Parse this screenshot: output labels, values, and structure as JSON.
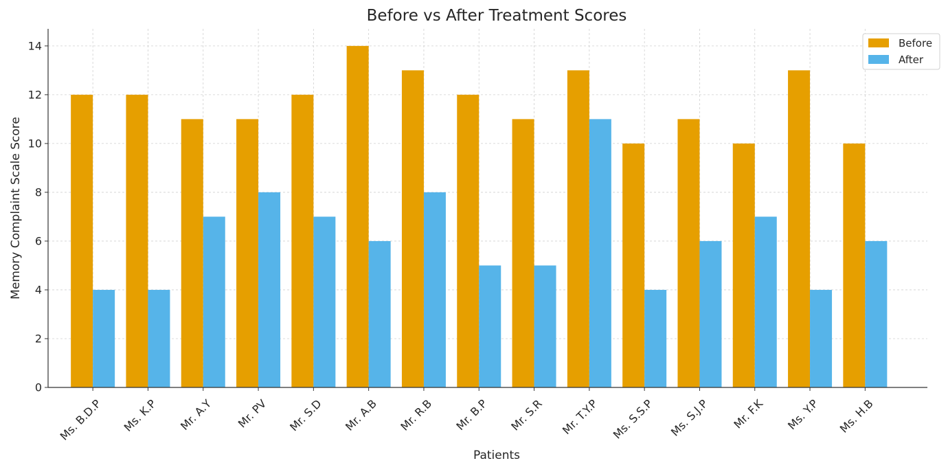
{
  "chart_data": {
    "type": "bar",
    "title": "Before vs After Treatment Scores",
    "xlabel": "Patients",
    "ylabel": "Memory Complaint Scale Score",
    "categories": [
      "Ms. B.D.P",
      "Ms. K.P",
      "Mr. A.Y",
      "Mr. PV",
      "Mr. S.D",
      "Mr. A.B",
      "Mr. R.B",
      "Mr. B.P",
      "Mr. S.R",
      "Mr. T.Y.P",
      "Ms. S.S.P",
      "Ms. S.J.P",
      "Mr. F.K",
      "Ms. Y.P",
      "Ms. H.B"
    ],
    "series": [
      {
        "name": "Before",
        "color": "#E69F00",
        "values": [
          12,
          12,
          11,
          11,
          12,
          14,
          13,
          12,
          11,
          13,
          10,
          11,
          10,
          13,
          10
        ]
      },
      {
        "name": "After",
        "color": "#56B4E9",
        "values": [
          4,
          4,
          7,
          8,
          7,
          6,
          8,
          5,
          5,
          11,
          4,
          6,
          7,
          4,
          6
        ]
      }
    ],
    "ylim": [
      0,
      14.7
    ],
    "yticks": [
      "0",
      "2",
      "4",
      "6",
      "8",
      "10",
      "12",
      "14"
    ],
    "grid": true,
    "legend_position": "top-right"
  }
}
